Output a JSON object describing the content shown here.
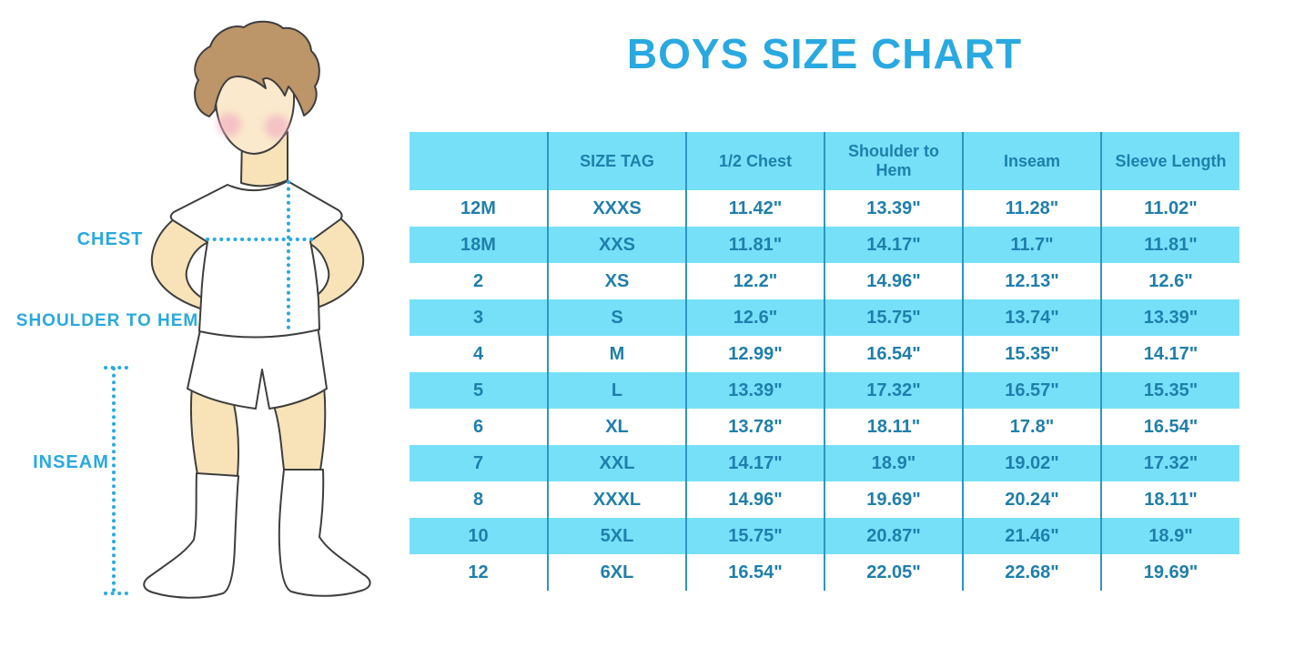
{
  "header": {
    "title": "BOYS SIZE CHART"
  },
  "figure": {
    "labels": {
      "chest": "CHEST",
      "shoulder_to_hem": "SHOULDER TO HEM",
      "inseam": "INSEAM"
    }
  },
  "chart_data": {
    "type": "table",
    "title": "BOYS SIZE CHART",
    "columns": [
      "",
      "SIZE TAG",
      "1/2 Chest",
      "Shoulder to Hem",
      "Inseam",
      "Sleeve Length"
    ],
    "rows": [
      {
        "size": "12M",
        "tag": "XXXS",
        "chest": "11.42\"",
        "shoulder_to_hem": "13.39\"",
        "inseam": "11.28\"",
        "sleeve": "11.02\""
      },
      {
        "size": "18M",
        "tag": "XXS",
        "chest": "11.81\"",
        "shoulder_to_hem": "14.17\"",
        "inseam": "11.7\"",
        "sleeve": "11.81\""
      },
      {
        "size": "2",
        "tag": "XS",
        "chest": "12.2\"",
        "shoulder_to_hem": "14.96\"",
        "inseam": "12.13\"",
        "sleeve": "12.6\""
      },
      {
        "size": "3",
        "tag": "S",
        "chest": "12.6\"",
        "shoulder_to_hem": "15.75\"",
        "inseam": "13.74\"",
        "sleeve": "13.39\""
      },
      {
        "size": "4",
        "tag": "M",
        "chest": "12.99\"",
        "shoulder_to_hem": "16.54\"",
        "inseam": "15.35\"",
        "sleeve": "14.17\""
      },
      {
        "size": "5",
        "tag": "L",
        "chest": "13.39\"",
        "shoulder_to_hem": "17.32\"",
        "inseam": "16.57\"",
        "sleeve": "15.35\""
      },
      {
        "size": "6",
        "tag": "XL",
        "chest": "13.78\"",
        "shoulder_to_hem": "18.11\"",
        "inseam": "17.8\"",
        "sleeve": "16.54\""
      },
      {
        "size": "7",
        "tag": "XXL",
        "chest": "14.17\"",
        "shoulder_to_hem": "18.9\"",
        "inseam": "19.02\"",
        "sleeve": "17.32\""
      },
      {
        "size": "8",
        "tag": "XXXL",
        "chest": "14.96\"",
        "shoulder_to_hem": "19.69\"",
        "inseam": "20.24\"",
        "sleeve": "18.11\""
      },
      {
        "size": "10",
        "tag": "5XL",
        "chest": "15.75\"",
        "shoulder_to_hem": "20.87\"",
        "inseam": "21.46\"",
        "sleeve": "18.9\""
      },
      {
        "size": "12",
        "tag": "6XL",
        "chest": "16.54\"",
        "shoulder_to_hem": "22.05\"",
        "inseam": "22.68\"",
        "sleeve": "19.69\""
      }
    ]
  },
  "colors": {
    "accent": "#29A9E1",
    "table_stripe": "#77E0F9",
    "table_line": "#2C97C0",
    "table_text": "#1E7FAD",
    "dotted_line": "#29ABE2",
    "skin": "#F8E3B9",
    "hair": "#BC9568",
    "cheek": "#F1A8BF",
    "outline": "#3E3E3E"
  }
}
